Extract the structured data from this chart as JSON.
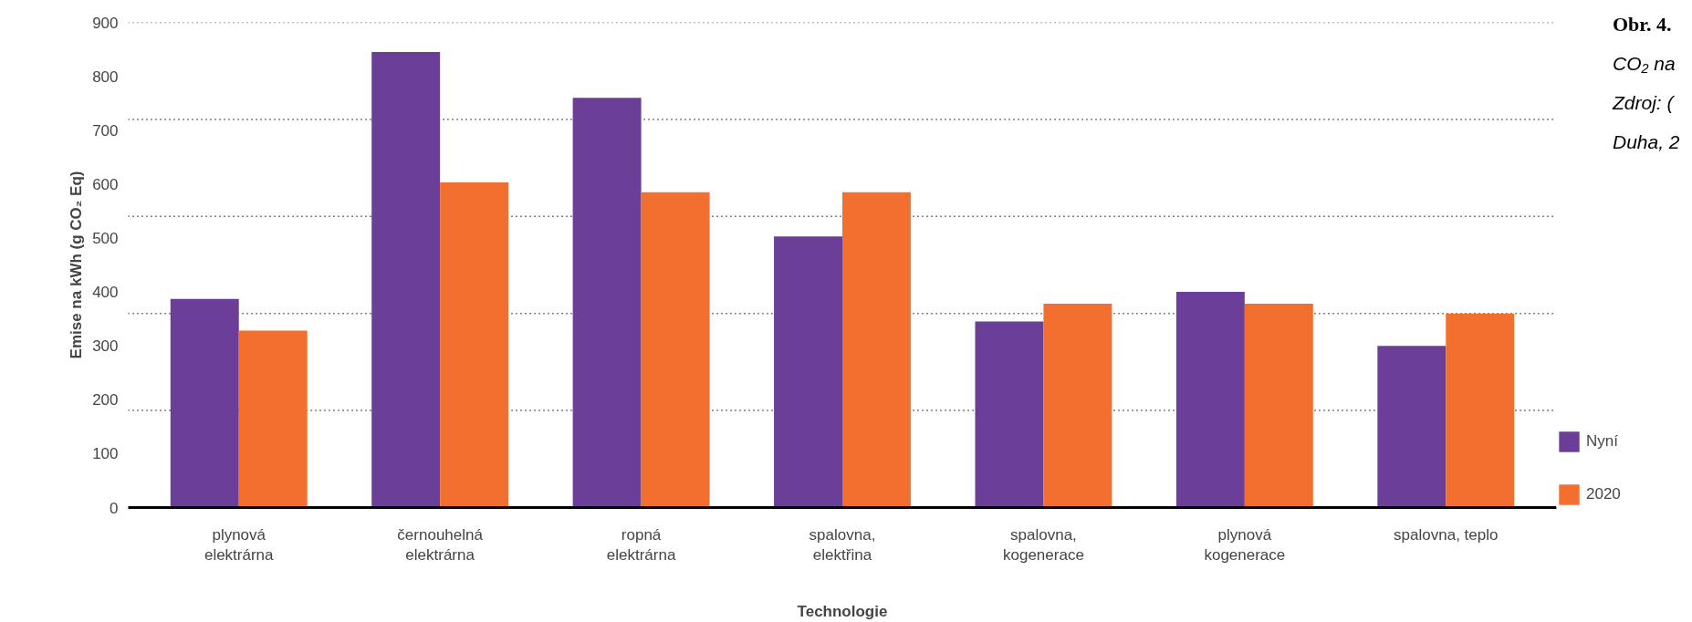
{
  "chart_data": {
    "type": "bar",
    "xlabel": "Technologie",
    "ylabel": "Emise na kWh (g CO₂ Eq)",
    "categories": [
      "plynová\nelektrárna",
      "černouhelná\nelektrárna",
      "ropná\nelektrárna",
      "spalovna,\nelektřina",
      "spalovna,\nkogenerace",
      "plynová\nkogenerace",
      "spalovna, teplo"
    ],
    "series": [
      {
        "name": "Nyní",
        "color": "#6b3f98",
        "values": [
          387,
          845,
          760,
          503,
          345,
          400,
          300
        ]
      },
      {
        "name": "2020",
        "color": "#f26f30",
        "values": [
          328,
          603,
          585,
          585,
          378,
          378,
          360
        ]
      }
    ],
    "ylim": [
      0,
      900
    ],
    "yticks": [
      0,
      100,
      200,
      300,
      400,
      500,
      600,
      700,
      800,
      900
    ],
    "grid": false,
    "legend": "right",
    "ref_lines": [
      {
        "axis": "y",
        "value": 180,
        "label": null,
        "color": "#000000",
        "line_style": "dotted"
      },
      {
        "axis": "y",
        "value": 360,
        "label": null,
        "color": "#000000",
        "line_style": "dotted"
      },
      {
        "axis": "y",
        "value": 540,
        "label": null,
        "color": "#000000",
        "line_style": "dotted"
      },
      {
        "axis": "y",
        "value": 720,
        "label": null,
        "color": "#000000",
        "line_style": "dotted"
      },
      {
        "axis": "y",
        "value": 900,
        "label": null,
        "color": "#000000",
        "line_style": "dotted"
      }
    ],
    "annotations": [
      "Obr. 4.",
      "CO₂ na",
      "Zdroj: (",
      "Duha, 2"
    ]
  }
}
